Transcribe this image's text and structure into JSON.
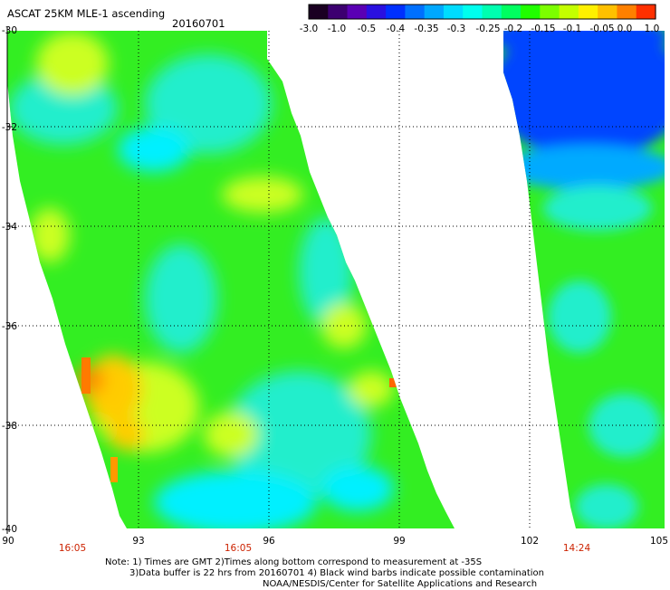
{
  "header": {
    "title": "ASCAT 25KM MLE-1 ascending",
    "date": "20160701"
  },
  "colorbar": {
    "colors": [
      "#1a0022",
      "#3c0070",
      "#5a00b4",
      "#2a10e0",
      "#0030ff",
      "#0070ff",
      "#00a8ff",
      "#00dcff",
      "#00ffee",
      "#00ffb0",
      "#00ff60",
      "#20ff00",
      "#7cff00",
      "#c4ff00",
      "#fff000",
      "#ffc000",
      "#ff8000",
      "#ff3000"
    ],
    "tick_labels": [
      "-3.0",
      "-1.0",
      "-0.5",
      "-0.4",
      "-0.35",
      "-0.3",
      "-0.25",
      "-0.2",
      "-0.15",
      "-0.1",
      "-0.05",
      "0.0",
      "1.0"
    ]
  },
  "map": {
    "lat_labels": [
      "-30",
      "-32",
      "-34",
      "-36",
      "-38",
      "-40"
    ],
    "lon_labels": [
      "90",
      "93",
      "96",
      "99",
      "102",
      "105"
    ],
    "time_labels": [
      "16:05",
      "16:05",
      "14:24"
    ],
    "time_label_color": "#cc2200",
    "grid_color": "#000000"
  },
  "notes": {
    "line1": "Note: 1) Times are GMT 2)Times along bottom correspond to measurement at -35S",
    "line2": "3)Data buffer is 22 hrs from 20160701 4) Black wind barbs indicate possible contamination",
    "line3": "NOAA/NESDIS/Center for Satellite Applications and Research"
  },
  "swaths": [
    {
      "name": "swath-1605",
      "base_color": "#33ee22",
      "regions": [
        {
          "color": "#22eecc",
          "kind": "low"
        },
        {
          "color": "#00f0ff",
          "kind": "low"
        },
        {
          "color": "#ccff22",
          "kind": "high"
        },
        {
          "color": "#ffcc00",
          "kind": "high"
        },
        {
          "color": "#ff8800",
          "kind": "peak"
        }
      ]
    },
    {
      "name": "swath-1424",
      "base_color": "#33ee22",
      "regions": [
        {
          "color": "#0044ff",
          "kind": "low"
        },
        {
          "color": "#00aaff",
          "kind": "low"
        },
        {
          "color": "#22eecc",
          "kind": "low"
        }
      ]
    }
  ]
}
